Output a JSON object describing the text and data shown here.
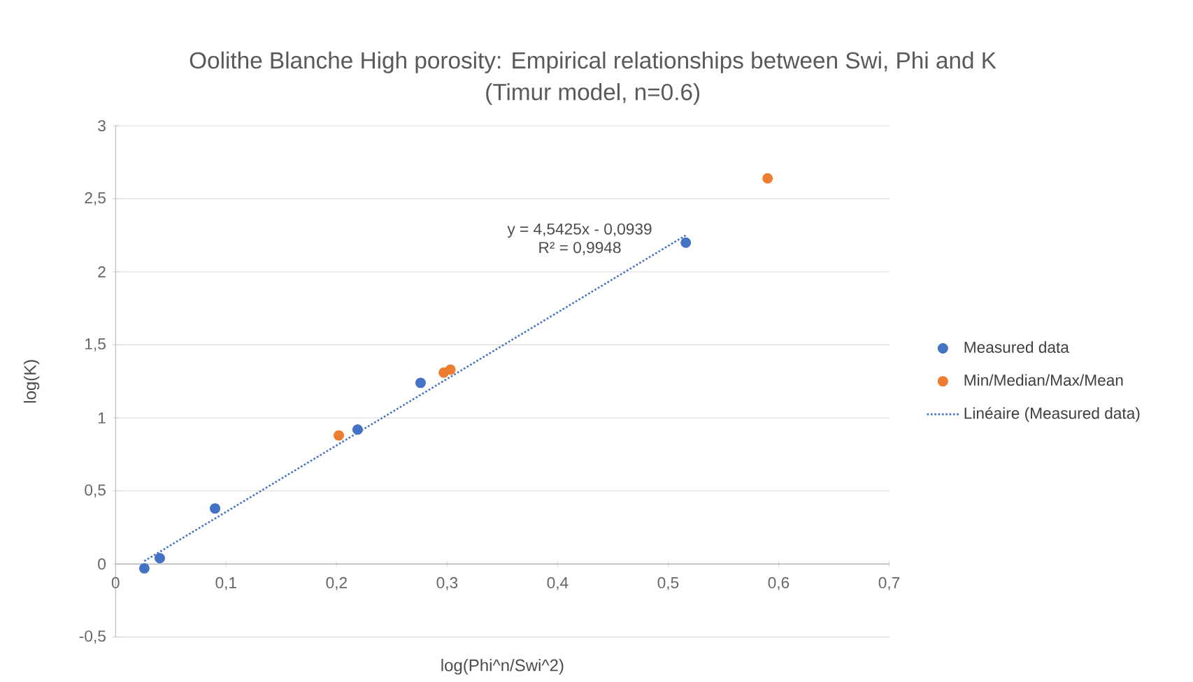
{
  "chart_data": {
    "type": "scatter",
    "title": "Oolithe Blanche High porosity: Empirical relationships between Swi, Phi and K",
    "subtitle": "(Timur model, n=0.6)",
    "xlabel": "log(Phi^n/Swi^2)",
    "ylabel": "log(K)",
    "series": [
      {
        "name": "Measured data",
        "color": "#4472c4",
        "marker": "circle",
        "x": [
          0.026,
          0.04,
          0.09,
          0.219,
          0.276,
          0.516
        ],
        "values": [
          -0.03,
          0.04,
          0.38,
          0.92,
          1.24,
          2.2
        ]
      },
      {
        "name": "Min/Median/Max/Mean",
        "color": "#ed7d31",
        "marker": "circle",
        "x": [
          0.202,
          0.297,
          0.303,
          0.59
        ],
        "values": [
          0.88,
          1.31,
          1.33,
          2.64
        ]
      },
      {
        "name": "Linéaire (Measured data)",
        "type": "line",
        "line_style": "dotted",
        "marker": "none",
        "color": "#4472c4",
        "x": [
          0.026,
          0.516
        ],
        "values": [
          0.02,
          2.25
        ]
      }
    ],
    "annotations": [
      "y = 4,5425x - 0,0939",
      "R² = 0,9948"
    ],
    "xlim": [
      0,
      0.7
    ],
    "ylim": [
      -0.5,
      3
    ],
    "xticks": [
      0,
      {
        "value": 0.1,
        "label": "0,1"
      },
      {
        "value": 0.2,
        "label": "0,2"
      },
      {
        "value": 0.3,
        "label": "0,3"
      },
      {
        "value": 0.4,
        "label": "0,4"
      },
      {
        "value": 0.5,
        "label": "0,5"
      },
      {
        "value": 0.6,
        "label": "0,6"
      },
      {
        "value": 0.7,
        "label": "0,7"
      }
    ],
    "yticks": [
      {
        "value": -0.5,
        "label": "-0,5"
      },
      0,
      {
        "value": 0.5,
        "label": "0,5"
      },
      1,
      {
        "value": 1.5,
        "label": "1,5"
      },
      2,
      {
        "value": 2.5,
        "label": "2,5"
      },
      3
    ],
    "grid": "y",
    "legend": "right"
  }
}
